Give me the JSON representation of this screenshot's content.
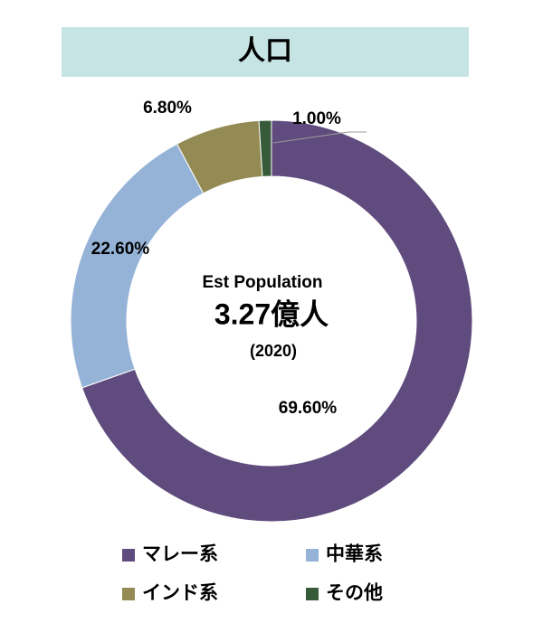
{
  "chart_data": {
    "type": "donut",
    "title": "人口",
    "center_text": [
      "Est Population",
      "3.27億人",
      "(2020)"
    ],
    "categories": [
      "マレー系",
      "中華系",
      "インド系",
      "その他"
    ],
    "values": [
      69.6,
      22.6,
      6.8,
      1.0
    ],
    "value_labels": [
      "69.60%",
      "22.60%",
      "6.80%",
      "1.00%"
    ],
    "colors": [
      "#5f4b7d",
      "#95b3d7",
      "#948a54",
      "#375a38"
    ],
    "legend": "bottom"
  }
}
